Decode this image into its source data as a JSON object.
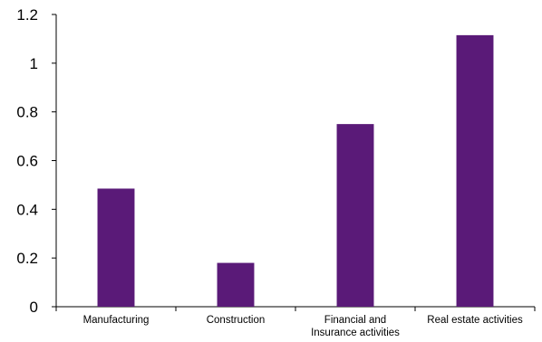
{
  "chart_data": {
    "type": "bar",
    "title": "",
    "xlabel": "",
    "ylabel": "",
    "categories": [
      "Manufacturing",
      "Construction",
      "Financial and Insurance activities",
      "Real estate activities"
    ],
    "category_lines": [
      [
        "Manufacturing"
      ],
      [
        "Construction"
      ],
      [
        "Financial and",
        "Insurance activities"
      ],
      [
        "Real estate activities"
      ]
    ],
    "values": [
      0.485,
      0.18,
      0.75,
      1.115
    ],
    "ylim": [
      0,
      1.2
    ],
    "yticks": [
      "0",
      "0.2",
      "0.4",
      "0.6",
      "0.8",
      "1",
      "1.2"
    ],
    "bar_color": "#5a1a78",
    "grid": false,
    "legend": "none"
  }
}
